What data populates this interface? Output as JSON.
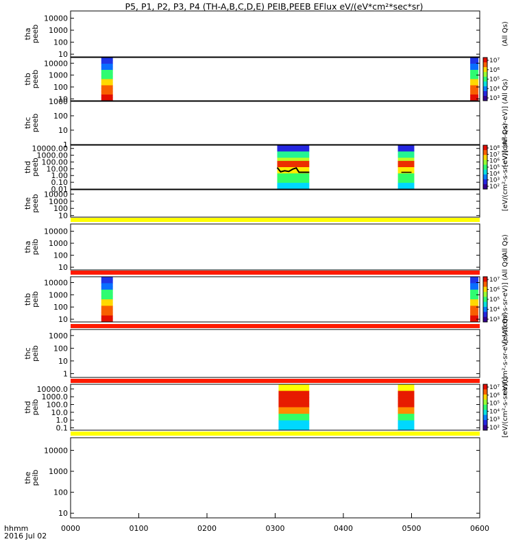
{
  "title": "P5, P1, P2, P3, P4 (TH-A,B,C,D,E) PEIB,PEEB EFlux eV/(eV*cm²*sec*sr)",
  "footer": {
    "time_label": "hhmm",
    "date_label": "2016 Jul 02"
  },
  "colors": {
    "background": "#ffffff",
    "frame": "#000000",
    "status_bar_red": "#ff1a00",
    "status_bar_yellow": "#ffff00",
    "trace": "#000000"
  },
  "chart_data": {
    "type": "heatmap",
    "x_axis": {
      "unit": "hhmm",
      "ticks": [
        "0000",
        "0100",
        "0200",
        "0300",
        "0400",
        "0500",
        "0600"
      ],
      "range_hours": [
        0,
        6
      ]
    },
    "panels": [
      {
        "id": "tha-peeb",
        "label": [
          "tha",
          "peeb"
        ],
        "yscale": "log",
        "ylim": [
          6,
          40000
        ],
        "yticks": [
          {
            "v": 10,
            "label": "10"
          },
          {
            "v": 100,
            "label": "100"
          },
          {
            "v": 1000,
            "label": "1000"
          },
          {
            "v": 10000,
            "label": "10000"
          }
        ],
        "blocks": [],
        "status_bar": null,
        "colorbar": {
          "text": "(All Qs)",
          "ticks": []
        }
      },
      {
        "id": "thb-peeb",
        "label": [
          "thb",
          "peeb"
        ],
        "yscale": "log",
        "ylim": [
          7,
          30000
        ],
        "yticks": [
          {
            "v": 10,
            "label": "10"
          },
          {
            "v": 100,
            "label": "100"
          },
          {
            "v": 1000,
            "label": "1000"
          },
          {
            "v": 10000,
            "label": "10000"
          }
        ],
        "blocks": [
          {
            "t0": 0.45,
            "t1": 0.62,
            "profile": "hot"
          },
          {
            "t0": 5.86,
            "t1": 5.98,
            "profile": "hot"
          }
        ],
        "status_bar": null,
        "colorbar": {
          "text": "",
          "ticks": [
            "10³",
            "10⁴",
            "10⁵",
            "10⁶",
            "10⁷"
          ]
        }
      },
      {
        "id": "thc-peeb",
        "label": [
          "thc",
          "peeb"
        ],
        "yscale": "log",
        "ylim": [
          1,
          1000
        ],
        "yticks": [
          {
            "v": 1,
            "label": "1"
          },
          {
            "v": 10,
            "label": "10"
          },
          {
            "v": 100,
            "label": "100"
          },
          {
            "v": 1000,
            "label": "1000"
          }
        ],
        "blocks": [],
        "status_bar": null,
        "colorbar": {
          "text": "[eV/(cm²-s-sr-eV)] (All Qs)",
          "ticks": []
        }
      },
      {
        "id": "thd-peeb",
        "label": [
          "thd",
          "peeb"
        ],
        "yscale": "log",
        "ylim": [
          0.01,
          30000
        ],
        "yticks": [
          {
            "v": 0.01,
            "label": "0.01"
          },
          {
            "v": 0.1,
            "label": "0.10"
          },
          {
            "v": 1,
            "label": "1.00"
          },
          {
            "v": 10,
            "label": "10.00"
          },
          {
            "v": 100,
            "label": "100.00"
          },
          {
            "v": 1000,
            "label": "1000.00"
          },
          {
            "v": 10000,
            "label": "10000.00"
          }
        ],
        "blocks": [
          {
            "t0": 3.03,
            "t1": 3.5,
            "profile": "warm"
          },
          {
            "t0": 4.8,
            "t1": 5.04,
            "profile": "warm"
          }
        ],
        "trace": [
          [
            3.03,
            15
          ],
          [
            3.08,
            3.5
          ],
          [
            3.14,
            5
          ],
          [
            3.2,
            4
          ],
          [
            3.26,
            9
          ],
          [
            3.31,
            13
          ],
          [
            3.35,
            3
          ],
          [
            3.5,
            3
          ]
        ],
        "status_bar": null,
        "colorbar": {
          "text": "[eV/(cm²-s-sr-eV)] (All Qs)",
          "ticks": [
            "10²",
            "10³",
            "10⁴",
            "10⁵",
            "10⁶",
            "10⁷",
            "10⁸"
          ]
        }
      },
      {
        "id": "the-peeb",
        "label": [
          "the",
          "peeb"
        ],
        "yscale": "log",
        "ylim": [
          6,
          40000
        ],
        "yticks": [
          {
            "v": 10,
            "label": "10"
          },
          {
            "v": 100,
            "label": "100"
          },
          {
            "v": 1000,
            "label": "1000"
          },
          {
            "v": 10000,
            "label": "10000"
          }
        ],
        "blocks": [],
        "status_bar": "yellow",
        "colorbar": {
          "text": "",
          "ticks": []
        }
      },
      {
        "id": "tha-peib",
        "label": [
          "tha",
          "peib"
        ],
        "yscale": "log",
        "ylim": [
          6,
          40000
        ],
        "yticks": [
          {
            "v": 10,
            "label": "10"
          },
          {
            "v": 100,
            "label": "100"
          },
          {
            "v": 1000,
            "label": "1000"
          },
          {
            "v": 10000,
            "label": "10000"
          }
        ],
        "blocks": [],
        "status_bar": "red",
        "colorbar": {
          "text": "(All Qs)",
          "ticks": []
        }
      },
      {
        "id": "thb-peib",
        "label": [
          "thb",
          "peib"
        ],
        "yscale": "log",
        "ylim": [
          6,
          30000
        ],
        "yticks": [
          {
            "v": 10,
            "label": "10"
          },
          {
            "v": 100,
            "label": "100"
          },
          {
            "v": 1000,
            "label": "1000"
          },
          {
            "v": 10000,
            "label": "10000"
          }
        ],
        "blocks": [
          {
            "t0": 0.45,
            "t1": 0.62,
            "profile": "hot"
          },
          {
            "t0": 5.86,
            "t1": 5.98,
            "profile": "hot"
          }
        ],
        "status_bar": "red",
        "colorbar": {
          "text": "[eV/(cm²-s-sr-eV)] (All Qs)",
          "ticks": [
            "10³",
            "10⁴",
            "10⁵",
            "10⁶",
            "10⁷"
          ]
        }
      },
      {
        "id": "thc-peib",
        "label": [
          "thc",
          "peib"
        ],
        "yscale": "log",
        "ylim": [
          0.5,
          3000
        ],
        "yticks": [
          {
            "v": 1,
            "label": "1"
          },
          {
            "v": 10,
            "label": "10"
          },
          {
            "v": 100,
            "label": "100"
          },
          {
            "v": 1000,
            "label": "1000"
          }
        ],
        "blocks": [],
        "status_bar": "red",
        "colorbar": {
          "text": "eV/(cm²-s-sr-eV) (All Qs)",
          "ticks": []
        }
      },
      {
        "id": "thd-peib",
        "label": [
          "thd",
          "peib"
        ],
        "yscale": "log",
        "ylim": [
          0.05,
          40000
        ],
        "yticks": [
          {
            "v": 0.1,
            "label": "0.1"
          },
          {
            "v": 1,
            "label": "1.0"
          },
          {
            "v": 10,
            "label": "10.0"
          },
          {
            "v": 100,
            "label": "100.0"
          },
          {
            "v": 1000,
            "label": "1000.0"
          },
          {
            "v": 10000,
            "label": "10000.0"
          }
        ],
        "blocks": [
          {
            "t0": 3.05,
            "t1": 3.5,
            "profile": "ion"
          },
          {
            "t0": 4.8,
            "t1": 5.04,
            "profile": "ion"
          }
        ],
        "status_bar": "yellow",
        "colorbar": {
          "text": "[eV/(cm²-s-sr-eV)]",
          "ticks": [
            "10²",
            "10³",
            "10⁴",
            "10⁵",
            "10⁶",
            "10⁷"
          ]
        }
      },
      {
        "id": "the-peib",
        "label": [
          "the",
          "peib"
        ],
        "yscale": "log",
        "ylim": [
          6,
          40000
        ],
        "yticks": [
          {
            "v": 10,
            "label": "10"
          },
          {
            "v": 100,
            "label": "100"
          },
          {
            "v": 1000,
            "label": "1000"
          },
          {
            "v": 10000,
            "label": "10000"
          }
        ],
        "blocks": [],
        "status_bar": null,
        "colorbar": {
          "text": "",
          "ticks": []
        }
      }
    ]
  }
}
